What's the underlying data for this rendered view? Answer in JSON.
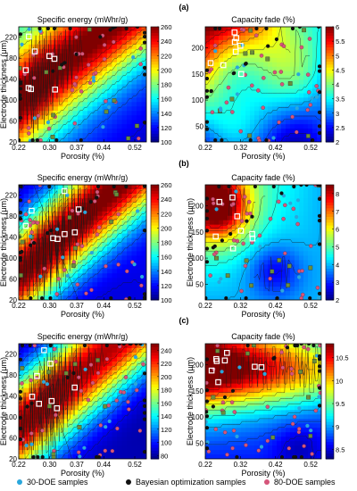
{
  "panels": [
    {
      "label": "(a)"
    },
    {
      "label": "(b)"
    },
    {
      "label": "(c)"
    }
  ],
  "legend": {
    "items": [
      {
        "label": "30-DOE samples",
        "color": "#2aa7dc"
      },
      {
        "label": "Bayesian optimization samples",
        "color": "#111111"
      },
      {
        "label": "80-DOE samples",
        "color": "#d5557a"
      }
    ]
  },
  "chart_data": [
    {
      "type": "heatmap",
      "panel": "(a)",
      "title": "Specific energy (mWhr/g)",
      "xlabel": "Porosity (%)",
      "ylabel": "Electrode thickness (μm)",
      "x_ticks": [
        "0.22",
        "0.30",
        "0.37",
        "0.44",
        "0.52"
      ],
      "y_ticks": [
        "20",
        "60",
        "100",
        "140",
        "180",
        "220"
      ],
      "xlim": [
        0.22,
        0.55
      ],
      "ylim": [
        20,
        240
      ],
      "colorbar_ticks": [
        "100",
        "120",
        "140",
        "160",
        "180",
        "200",
        "220",
        "240",
        "260"
      ],
      "colorbar_range": [
        100,
        260
      ],
      "colormap": "jet"
    },
    {
      "type": "heatmap",
      "panel": "(a)",
      "title": "Capacity fade (%)",
      "xlabel": "Porosity (%)",
      "ylabel": "",
      "x_ticks": [
        "0.22",
        "0.32",
        "0.42",
        "0.52"
      ],
      "y_ticks": [
        "50",
        "100",
        "150",
        "200"
      ],
      "xlim": [
        0.22,
        0.55
      ],
      "ylim": [
        20,
        240
      ],
      "colorbar_ticks": [
        "2",
        "2.5",
        "3",
        "3.5",
        "4",
        "4.5",
        "5",
        "5.5",
        "6"
      ],
      "colorbar_range": [
        2,
        6
      ],
      "colormap": "jet"
    },
    {
      "type": "heatmap",
      "panel": "(b)",
      "title": "Specific energy (mWhr/g)",
      "xlabel": "Porosity (%)",
      "ylabel": "Electrode thickness (μm)",
      "x_ticks": [
        "0.22",
        "0.30",
        "0.37",
        "0.44",
        "0.52"
      ],
      "y_ticks": [
        "20",
        "60",
        "100",
        "140",
        "180",
        "220"
      ],
      "xlim": [
        0.22,
        0.55
      ],
      "ylim": [
        20,
        240
      ],
      "colorbar_ticks": [
        "100",
        "120",
        "140",
        "160",
        "180",
        "200",
        "220",
        "240",
        "260"
      ],
      "colorbar_range": [
        100,
        260
      ],
      "colormap": "jet"
    },
    {
      "type": "heatmap",
      "panel": "(b)",
      "title": "Capacity fade (%)",
      "xlabel": "Porosity (%)",
      "ylabel": "Electrode thickness (μm)",
      "x_ticks": [
        "0.22",
        "0.32",
        "0.42",
        "0.52"
      ],
      "y_ticks": [
        "50",
        "100",
        "150",
        "200"
      ],
      "xlim": [
        0.22,
        0.55
      ],
      "ylim": [
        20,
        240
      ],
      "colorbar_ticks": [
        "2",
        "3",
        "4",
        "5",
        "6",
        "7",
        "8"
      ],
      "colorbar_range": [
        2,
        8.5
      ],
      "colormap": "jet"
    },
    {
      "type": "heatmap",
      "panel": "(c)",
      "title": "Specific energy (mWhr/g)",
      "xlabel": "Porosity (%)",
      "ylabel": "Electrode thickness (μm)",
      "x_ticks": [
        "0.22",
        "0.30",
        "0.37",
        "0.44",
        "0.52"
      ],
      "y_ticks": [
        "20",
        "60",
        "100",
        "140",
        "180",
        "220"
      ],
      "xlim": [
        0.22,
        0.55
      ],
      "ylim": [
        20,
        240
      ],
      "colorbar_ticks": [
        "80",
        "100",
        "120",
        "140",
        "160",
        "180",
        "200",
        "220",
        "240"
      ],
      "colorbar_range": [
        75,
        250
      ],
      "colormap": "jet"
    },
    {
      "type": "heatmap",
      "panel": "(c)",
      "title": "Capacity fade (%)",
      "xlabel": "Porosity (%)",
      "ylabel": "Electrode thickness (μm)",
      "x_ticks": [
        "0.22",
        "0.32",
        "0.42",
        "0.52"
      ],
      "y_ticks": [
        "50",
        "100",
        "150",
        "200"
      ],
      "xlim": [
        0.22,
        0.55
      ],
      "ylim": [
        20,
        240
      ],
      "colorbar_ticks": [
        "8.5",
        "9",
        "9.5",
        "10",
        "10.5"
      ],
      "colorbar_range": [
        8.3,
        10.8
      ],
      "colormap": "jet"
    }
  ]
}
